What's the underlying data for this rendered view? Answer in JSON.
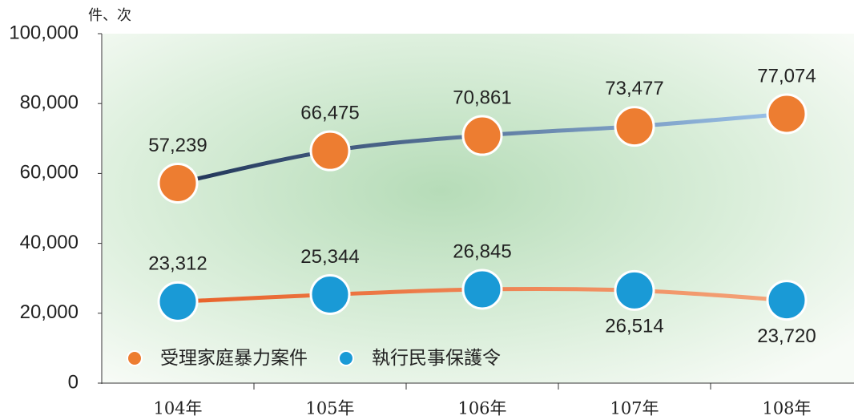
{
  "chart_data": {
    "type": "line",
    "unit_label": "件、次",
    "categories": [
      "104年",
      "105年",
      "106年",
      "107年",
      "108年"
    ],
    "series": [
      {
        "name": "受理家庭暴力案件",
        "color": "#ed7d31",
        "line_color": [
          "#1f3356",
          "#9cc3ea"
        ],
        "values": [
          57239,
          66475,
          70861,
          73477,
          77074
        ],
        "value_labels": [
          "57,239",
          "66,475",
          "70,861",
          "73,477",
          "77,074"
        ]
      },
      {
        "name": "執行民事保護令",
        "color": "#1a9ad6",
        "line_color": [
          "#e8622a",
          "#f4a47a"
        ],
        "values": [
          23312,
          25344,
          26845,
          26514,
          23720
        ],
        "value_labels": [
          "23,312",
          "25,344",
          "26,845",
          "26,514",
          "23,720"
        ]
      }
    ],
    "ylim": [
      0,
      100000
    ],
    "yticks": [
      0,
      {
        "value": 20000,
        "label": "20,000"
      },
      {
        "value": 40000,
        "label": "40,000"
      },
      {
        "value": 60000,
        "label": "60,000"
      },
      {
        "value": 80000,
        "label": "80,000"
      },
      {
        "value": 100000,
        "label": "100,000"
      }
    ]
  }
}
